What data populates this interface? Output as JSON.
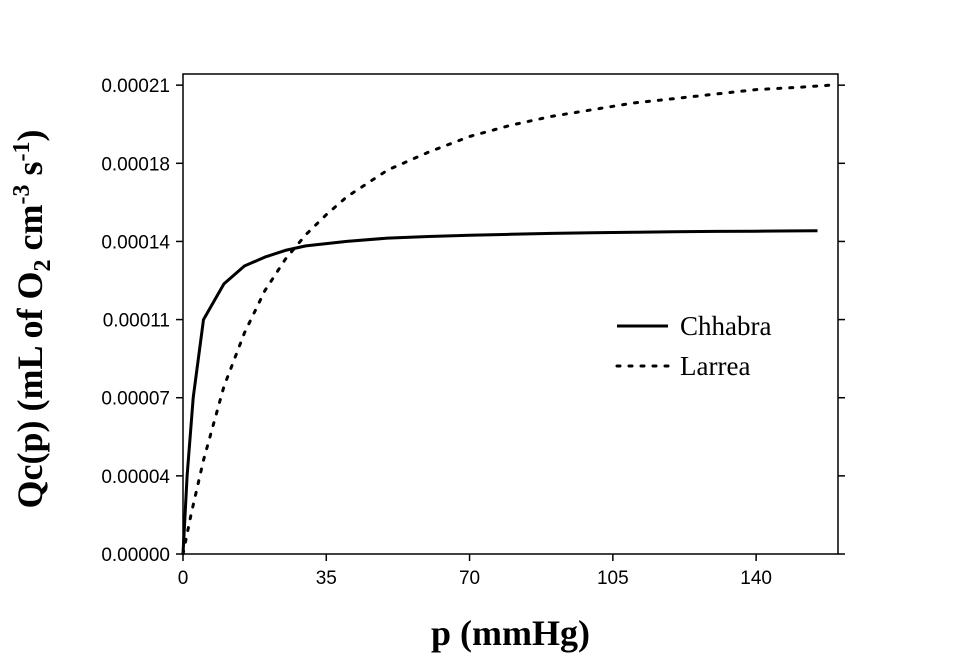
{
  "chart_data": {
    "type": "line",
    "title": "",
    "xlabel": "p (mmHg)",
    "ylabel": {
      "prefix": "Qc(p) (mL of O",
      "sub": "2",
      "mid": " cm",
      "sup1": "-3",
      "mid2": " s",
      "sup2": "-1",
      "suffix": ")"
    },
    "xlim": [
      0,
      160
    ],
    "ylim": [
      0,
      0.000215
    ],
    "x_ticks": [
      0,
      35,
      70,
      105,
      140
    ],
    "x_tick_labels": [
      "0",
      "35",
      "70",
      "105",
      "140"
    ],
    "y_ticks": [
      0,
      3.5e-05,
      7e-05,
      0.000105,
      0.00014,
      0.000175,
      0.00021
    ],
    "y_tick_labels": [
      "0.00000",
      "0.00004",
      "0.00007",
      "0.00011",
      "0.00014",
      "0.00018",
      "0.00021"
    ],
    "grid": false,
    "legend": "center-right",
    "series": [
      {
        "name": "Chhabra",
        "style": "solid",
        "color": "#000000",
        "x": [
          0,
          1,
          2.5,
          5,
          10,
          15,
          20,
          25,
          30,
          40,
          50,
          60,
          70,
          80,
          90,
          100,
          110,
          120,
          130,
          140,
          150,
          155
        ],
        "y": [
          0,
          3.5e-05,
          7e-05,
          0.000105,
          0.000121,
          0.000129,
          0.000133,
          0.000136,
          0.000138,
          0.00014,
          0.0001415,
          0.0001422,
          0.0001428,
          0.0001432,
          0.0001436,
          0.0001439,
          0.0001441,
          0.0001443,
          0.0001445,
          0.0001446,
          0.0001447,
          0.0001448
        ]
      },
      {
        "name": "Larrea",
        "style": "dotted",
        "color": "#000000",
        "x": [
          0,
          2,
          5,
          10,
          15,
          20,
          25,
          30,
          35,
          40,
          50,
          60,
          70,
          80,
          90,
          100,
          110,
          120,
          130,
          140,
          150,
          158
        ],
        "y": [
          0,
          1.8e-05,
          4.2e-05,
          7.5e-05,
          9.9e-05,
          0.000118,
          0.000132,
          0.000143,
          0.000152,
          0.00016,
          0.000172,
          0.00018,
          0.000187,
          0.000192,
          0.000196,
          0.000199,
          0.000202,
          0.000204,
          0.000206,
          0.000208,
          0.000209,
          0.00021
        ]
      }
    ]
  }
}
